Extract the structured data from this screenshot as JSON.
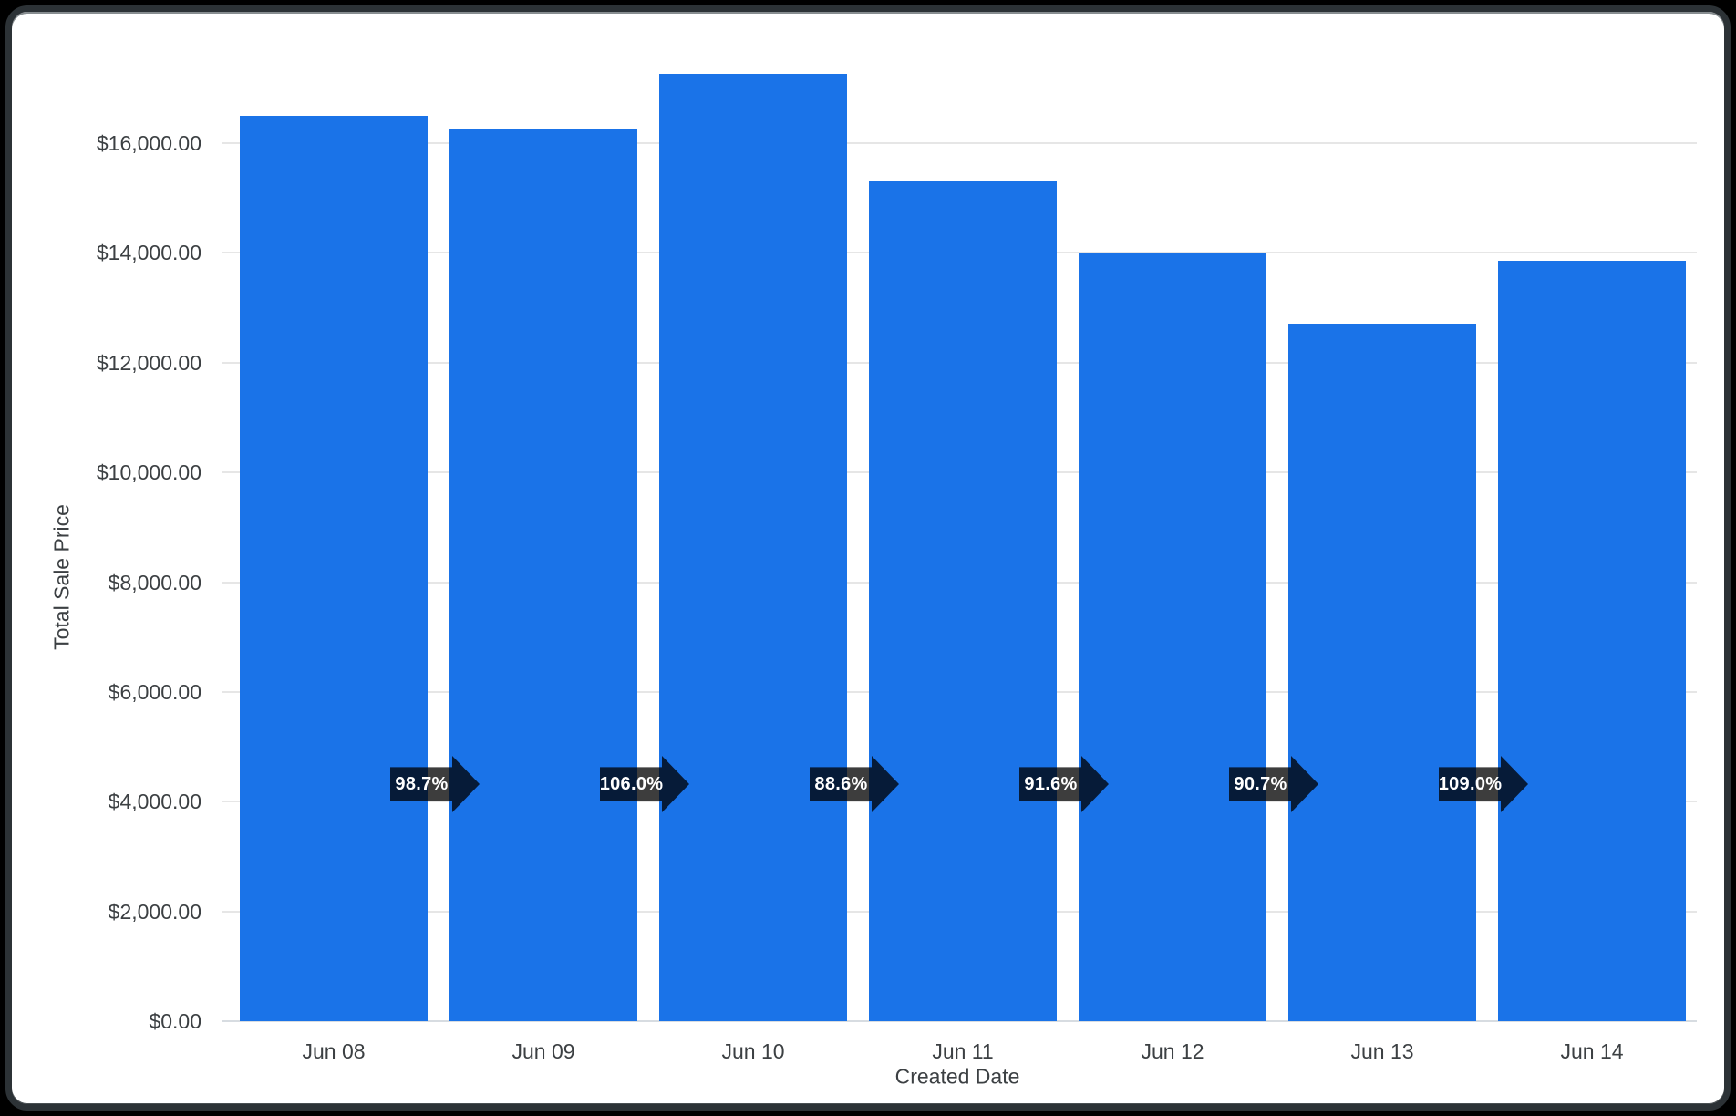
{
  "chart_data": {
    "type": "bar",
    "title": "",
    "xlabel": "Created Date",
    "ylabel": "Total Sale Price",
    "categories": [
      "Jun 08",
      "Jun 09",
      "Jun 10",
      "Jun 11",
      "Jun 12",
      "Jun 13",
      "Jun 14"
    ],
    "values": [
      16500,
      16270,
      17260,
      15300,
      14010,
      12710,
      13860
    ],
    "pct_change_labels": [
      "98.7%",
      "106.0%",
      "88.6%",
      "91.6%",
      "90.7%",
      "109.0%"
    ],
    "y_ticks": [
      "$0.00",
      "$2,000.00",
      "$4,000.00",
      "$6,000.00",
      "$8,000.00",
      "$10,000.00",
      "$12,000.00",
      "$14,000.00",
      "$16,000.00"
    ],
    "y_tick_values": [
      0,
      2000,
      4000,
      6000,
      8000,
      10000,
      12000,
      14000,
      16000
    ],
    "ylim": [
      0,
      17800
    ],
    "grid": true,
    "legend_position": "none",
    "colors": {
      "bar": "#1a73e8",
      "gridline": "#e6e6e6",
      "axis_label": "#3c4043",
      "arrow_fill": "rgba(0,0,0,0.76)",
      "arrow_text": "#ffffff",
      "card_background": "#ffffff",
      "frame": "#2c3236"
    }
  }
}
